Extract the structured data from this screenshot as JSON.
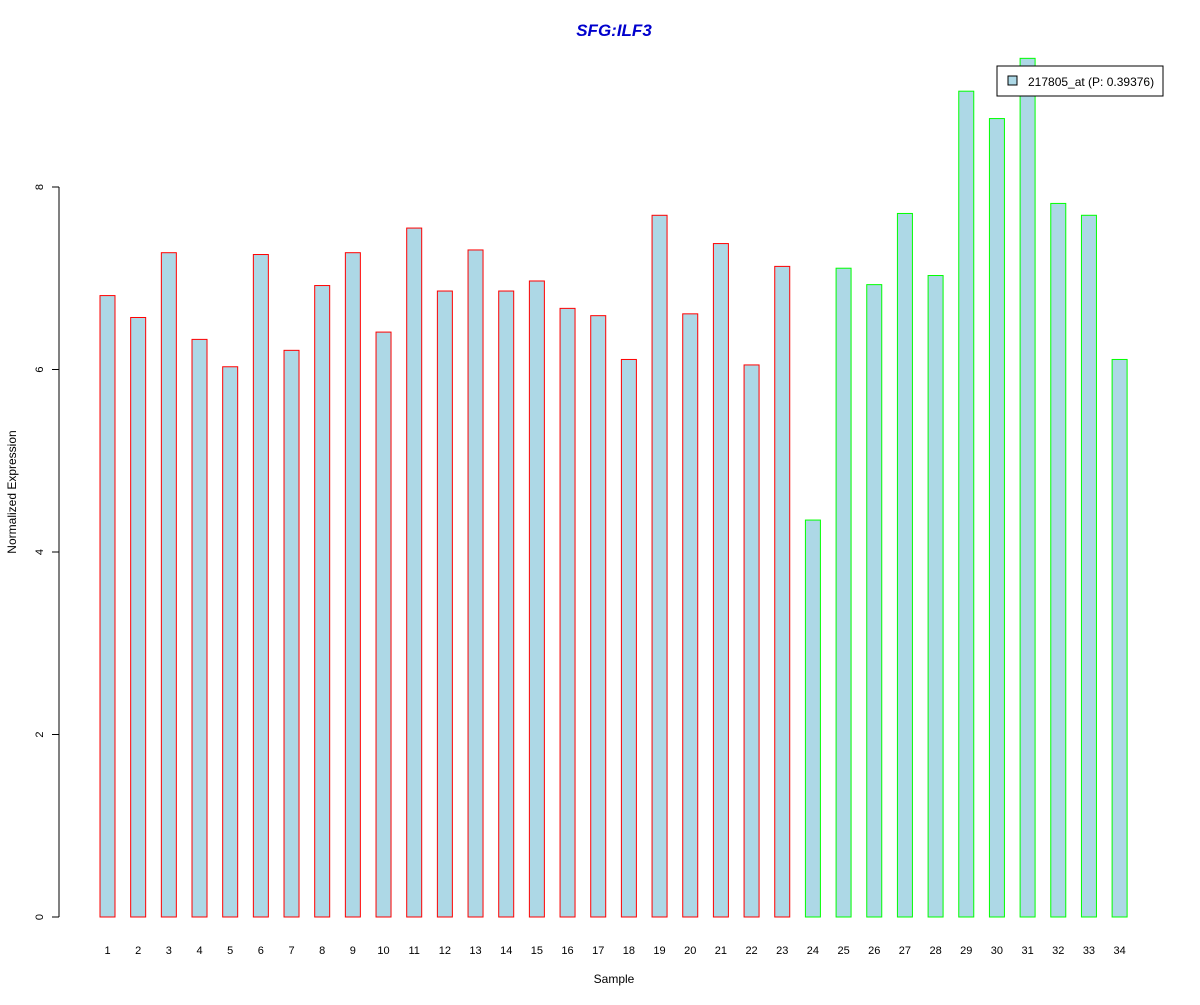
{
  "colors": {
    "bar_fill": "#add8e6",
    "group_a_border": "#ff0000",
    "group_b_border": "#00ff00",
    "title": "#0000cd",
    "axis": "#000000"
  },
  "chart_data": {
    "type": "bar",
    "title": "SFG:ILF3",
    "xlabel": "Sample",
    "ylabel": "Normalized Expression",
    "ylim": [
      0,
      9.5
    ],
    "yticks": [
      "0",
      "2",
      "4",
      "6",
      "8"
    ],
    "grid": false,
    "legend_position": "top-right",
    "legend": [
      {
        "label": "217805_at (P: 0.39376)",
        "color": "#add8e6"
      }
    ],
    "categories": [
      "1",
      "2",
      "3",
      "4",
      "5",
      "6",
      "7",
      "8",
      "9",
      "10",
      "11",
      "12",
      "13",
      "14",
      "15",
      "16",
      "17",
      "18",
      "19",
      "20",
      "21",
      "22",
      "23",
      "24",
      "25",
      "26",
      "27",
      "28",
      "29",
      "30",
      "31",
      "32",
      "33",
      "34"
    ],
    "values": [
      6.81,
      6.57,
      7.28,
      6.33,
      6.03,
      7.26,
      6.21,
      6.92,
      7.28,
      6.41,
      7.55,
      6.86,
      7.31,
      6.86,
      6.97,
      6.67,
      6.59,
      6.11,
      7.69,
      6.61,
      7.38,
      6.05,
      7.13,
      4.35,
      7.11,
      6.93,
      7.71,
      7.03,
      9.05,
      8.75,
      9.41,
      7.82,
      7.69,
      6.11
    ],
    "border_groups": [
      "a",
      "a",
      "a",
      "a",
      "a",
      "a",
      "a",
      "a",
      "a",
      "a",
      "a",
      "a",
      "a",
      "a",
      "a",
      "a",
      "a",
      "a",
      "a",
      "a",
      "a",
      "a",
      "a",
      "b",
      "b",
      "b",
      "b",
      "b",
      "b",
      "b",
      "b",
      "b",
      "b",
      "b"
    ]
  }
}
